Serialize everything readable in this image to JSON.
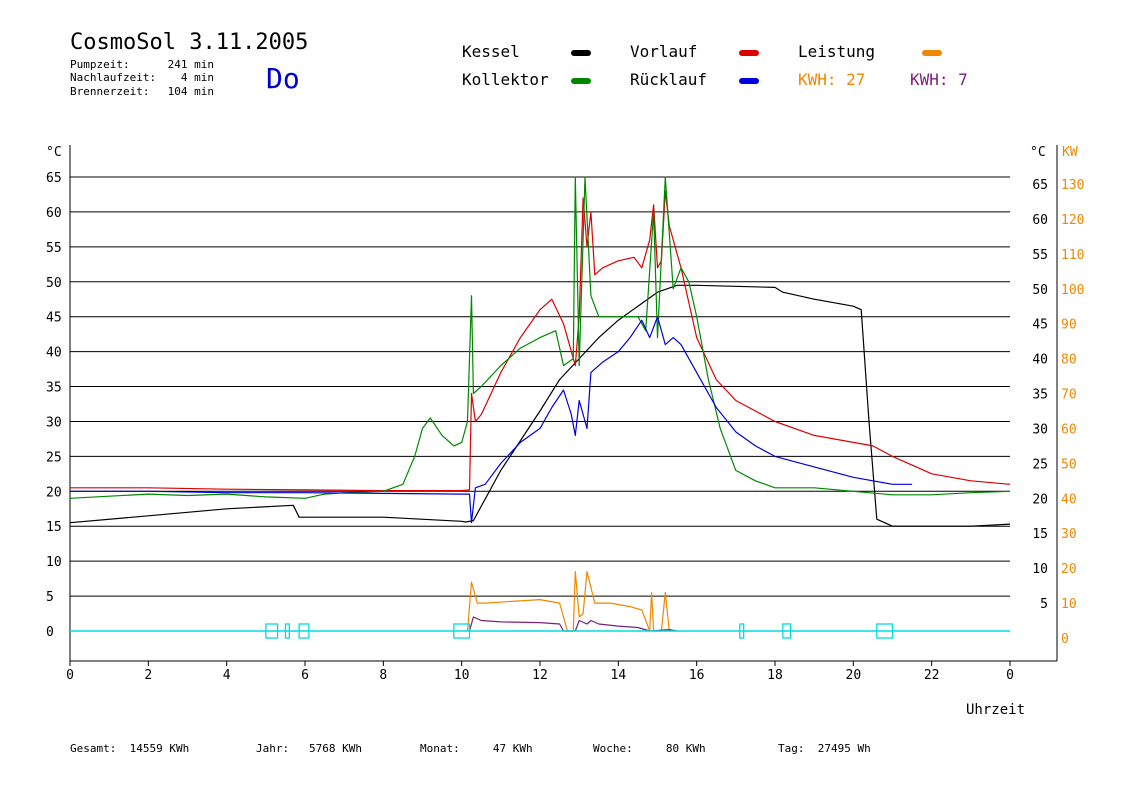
{
  "header": {
    "title": "CosmoSol 3.11.2005",
    "day": "Do",
    "stats": [
      {
        "label": "Pumpzeit:",
        "value": "241 min"
      },
      {
        "label": "Nachlaufzeit:",
        "value": "4 min"
      },
      {
        "label": "Brennerzeit:",
        "value": "104 min"
      }
    ]
  },
  "legend": {
    "kessel": {
      "label": "Kessel",
      "color": "#000000"
    },
    "vorlauf": {
      "label": "Vorlauf",
      "color": "#dd0000"
    },
    "leistung": {
      "label": "Leistung",
      "color": "#ee8800"
    },
    "kollektor": {
      "label": "Kollektor",
      "color": "#008800"
    },
    "ruecklauf": {
      "label": "Rücklauf",
      "color": "#0000dd"
    },
    "kwh1": {
      "label": "KWH: 27",
      "color": "#ee8800"
    },
    "kwh2": {
      "label": "KWH: 7",
      "color": "#7a1f7a"
    }
  },
  "footer": {
    "gesamt": "Gesamt:  14559 KWh",
    "jahr": "Jahr:   5768 KWh",
    "monat": "Monat:     47 KWh",
    "woche": "Woche:     80 KWh",
    "tag": "Tag:  27495 Wh"
  },
  "chart_data": {
    "type": "line",
    "xlabel": "Uhrzeit",
    "x_ticks": [
      "0",
      "2",
      "4",
      "6",
      "8",
      "10",
      "12",
      "14",
      "16",
      "18",
      "20",
      "22",
      "0"
    ],
    "left_unit": "°C",
    "left_ticks": [
      "0",
      "5",
      "10",
      "15",
      "20",
      "25",
      "30",
      "35",
      "40",
      "45",
      "50",
      "55",
      "60",
      "65"
    ],
    "right_unit_c": "°C",
    "right_unit_kw": "KW",
    "right_ticks_c": [
      "5",
      "10",
      "15",
      "20",
      "25",
      "30",
      "35",
      "40",
      "45",
      "50",
      "55",
      "60",
      "65"
    ],
    "right_ticks_kw": [
      "0",
      "10",
      "20",
      "30",
      "40",
      "50",
      "60",
      "70",
      "80",
      "90",
      "100",
      "110",
      "120",
      "130"
    ],
    "xlim": [
      0,
      24
    ],
    "ylim": [
      0,
      65
    ],
    "grid": true,
    "series": [
      {
        "name": "Kessel",
        "key": "kessel",
        "color": "#000000",
        "points": [
          [
            0,
            15.5
          ],
          [
            2,
            16.5
          ],
          [
            4,
            17.5
          ],
          [
            5.7,
            18
          ],
          [
            5.85,
            16.3
          ],
          [
            8,
            16.3
          ],
          [
            10,
            15.7
          ],
          [
            10.1,
            15.6
          ],
          [
            10.3,
            15.8
          ],
          [
            11,
            23
          ],
          [
            12,
            31.5
          ],
          [
            12.5,
            36
          ],
          [
            13,
            39
          ],
          [
            13.5,
            42
          ],
          [
            14,
            44.5
          ],
          [
            14.5,
            46.5
          ],
          [
            15,
            48.5
          ],
          [
            15.5,
            49.5
          ],
          [
            16,
            49.5
          ],
          [
            18,
            49.2
          ],
          [
            18.2,
            48.5
          ],
          [
            19,
            47.5
          ],
          [
            20,
            46.5
          ],
          [
            20.2,
            46
          ],
          [
            20.4,
            30
          ],
          [
            20.6,
            16
          ],
          [
            21,
            15
          ],
          [
            23,
            15
          ],
          [
            24,
            15.3
          ]
        ]
      },
      {
        "name": "Vorlauf",
        "key": "vorlauf",
        "color": "#dd0000",
        "points": [
          [
            0,
            20.5
          ],
          [
            2,
            20.5
          ],
          [
            4,
            20.3
          ],
          [
            6,
            20.2
          ],
          [
            8,
            20.1
          ],
          [
            10,
            20.1
          ],
          [
            10.2,
            20.2
          ],
          [
            10.25,
            34
          ],
          [
            10.35,
            30
          ],
          [
            10.5,
            31
          ],
          [
            11,
            37
          ],
          [
            11.5,
            42
          ],
          [
            12,
            46
          ],
          [
            12.3,
            47.5
          ],
          [
            12.6,
            44
          ],
          [
            12.9,
            38
          ],
          [
            13,
            45
          ],
          [
            13.1,
            62
          ],
          [
            13.2,
            55
          ],
          [
            13.3,
            60
          ],
          [
            13.4,
            51
          ],
          [
            13.6,
            52
          ],
          [
            14,
            53
          ],
          [
            14.4,
            53.5
          ],
          [
            14.6,
            52
          ],
          [
            14.8,
            56
          ],
          [
            14.9,
            61
          ],
          [
            15,
            52
          ],
          [
            15.1,
            53
          ],
          [
            15.2,
            63
          ],
          [
            15.3,
            58
          ],
          [
            15.6,
            52
          ],
          [
            16,
            42
          ],
          [
            16.5,
            36
          ],
          [
            17,
            33
          ],
          [
            18,
            30
          ],
          [
            19,
            28
          ],
          [
            20,
            27
          ],
          [
            20.5,
            26.5
          ],
          [
            21,
            25
          ],
          [
            22,
            22.5
          ],
          [
            23,
            21.5
          ],
          [
            24,
            21
          ]
        ]
      },
      {
        "name": "Kollektor",
        "key": "kollektor",
        "color": "#008800",
        "points": [
          [
            0,
            19
          ],
          [
            1,
            19.3
          ],
          [
            2,
            19.6
          ],
          [
            3,
            19.4
          ],
          [
            4,
            19.6
          ],
          [
            5,
            19.2
          ],
          [
            6,
            19
          ],
          [
            6.5,
            19.6
          ],
          [
            7,
            19.8
          ],
          [
            8,
            20
          ],
          [
            8.5,
            21
          ],
          [
            8.8,
            25
          ],
          [
            9,
            29
          ],
          [
            9.2,
            30.5
          ],
          [
            9.5,
            28
          ],
          [
            9.8,
            26.5
          ],
          [
            10,
            27
          ],
          [
            10.15,
            30
          ],
          [
            10.25,
            48
          ],
          [
            10.3,
            34
          ],
          [
            10.5,
            35
          ],
          [
            11,
            38
          ],
          [
            11.5,
            40.5
          ],
          [
            12,
            42
          ],
          [
            12.4,
            43
          ],
          [
            12.6,
            38
          ],
          [
            12.85,
            39
          ],
          [
            12.9,
            65
          ],
          [
            13,
            38
          ],
          [
            13.15,
            65
          ],
          [
            13.3,
            48
          ],
          [
            13.5,
            45
          ],
          [
            14,
            45
          ],
          [
            14.5,
            45
          ],
          [
            14.7,
            43
          ],
          [
            14.9,
            60
          ],
          [
            15,
            42
          ],
          [
            15.2,
            65
          ],
          [
            15.4,
            49
          ],
          [
            15.6,
            52
          ],
          [
            15.8,
            50
          ],
          [
            16,
            45
          ],
          [
            16.3,
            36
          ],
          [
            16.6,
            29
          ],
          [
            17,
            23
          ],
          [
            17.5,
            21.5
          ],
          [
            18,
            20.5
          ],
          [
            19,
            20.5
          ],
          [
            20,
            20
          ],
          [
            21,
            19.5
          ],
          [
            22,
            19.5
          ],
          [
            23,
            19.8
          ],
          [
            24,
            20
          ]
        ]
      },
      {
        "name": "Rücklauf",
        "key": "ruecklauf",
        "color": "#0000dd",
        "points": [
          [
            0,
            20
          ],
          [
            2,
            20
          ],
          [
            4,
            19.8
          ],
          [
            6,
            19.8
          ],
          [
            8,
            19.7
          ],
          [
            10,
            19.6
          ],
          [
            10.2,
            19.6
          ],
          [
            10.25,
            15.5
          ],
          [
            10.35,
            20.5
          ],
          [
            10.6,
            21
          ],
          [
            11,
            24
          ],
          [
            11.5,
            27
          ],
          [
            12,
            29
          ],
          [
            12.3,
            32
          ],
          [
            12.6,
            34.5
          ],
          [
            12.8,
            31
          ],
          [
            12.9,
            28
          ],
          [
            13,
            33
          ],
          [
            13.2,
            29
          ],
          [
            13.3,
            37
          ],
          [
            13.6,
            38.5
          ],
          [
            14,
            40
          ],
          [
            14.3,
            42
          ],
          [
            14.6,
            44.5
          ],
          [
            14.8,
            42
          ],
          [
            15,
            45
          ],
          [
            15.2,
            41
          ],
          [
            15.4,
            42
          ],
          [
            15.6,
            41
          ],
          [
            16,
            37
          ],
          [
            16.5,
            32
          ],
          [
            17,
            28.5
          ],
          [
            17.5,
            26.5
          ],
          [
            18,
            25
          ],
          [
            19,
            23.5
          ],
          [
            20,
            22
          ],
          [
            21,
            21
          ],
          [
            21.5,
            21
          ]
        ]
      },
      {
        "name": "Leistung",
        "key": "leistung",
        "color": "#ee8800",
        "points": [
          [
            10.15,
            0
          ],
          [
            10.25,
            7
          ],
          [
            10.4,
            4
          ],
          [
            10.6,
            4
          ],
          [
            12,
            4.5
          ],
          [
            12.5,
            4
          ],
          [
            12.7,
            0
          ],
          [
            12.85,
            0
          ],
          [
            12.9,
            8.5
          ],
          [
            13,
            2
          ],
          [
            13.1,
            2.5
          ],
          [
            13.2,
            8.5
          ],
          [
            13.4,
            4
          ],
          [
            13.8,
            4
          ],
          [
            14.3,
            3.5
          ],
          [
            14.6,
            3
          ],
          [
            14.8,
            0
          ],
          [
            14.85,
            5.5
          ],
          [
            14.9,
            0
          ],
          [
            15.1,
            0
          ],
          [
            15.2,
            5.5
          ],
          [
            15.3,
            0
          ]
        ]
      },
      {
        "name": "Leistung2",
        "key": "kwh2",
        "color": "#7a1f7a",
        "points": [
          [
            10.2,
            0
          ],
          [
            10.3,
            2
          ],
          [
            10.5,
            1.5
          ],
          [
            11,
            1.3
          ],
          [
            12,
            1.2
          ],
          [
            12.5,
            1
          ],
          [
            12.6,
            0
          ],
          [
            12.9,
            0
          ],
          [
            13,
            1.5
          ],
          [
            13.2,
            1
          ],
          [
            13.3,
            1.5
          ],
          [
            13.5,
            1
          ],
          [
            14,
            0.7
          ],
          [
            14.5,
            0.5
          ],
          [
            14.8,
            0
          ],
          [
            15.3,
            0.2
          ],
          [
            15.5,
            0
          ]
        ]
      }
    ],
    "brenner_intervals": [
      [
        5.0,
        5.3
      ],
      [
        5.5,
        5.6
      ],
      [
        5.85,
        6.1
      ],
      [
        9.8,
        10.2
      ],
      [
        17.1,
        17.2
      ],
      [
        18.2,
        18.4
      ],
      [
        20.6,
        21.0
      ]
    ],
    "brenner_color": "#00dddd"
  }
}
